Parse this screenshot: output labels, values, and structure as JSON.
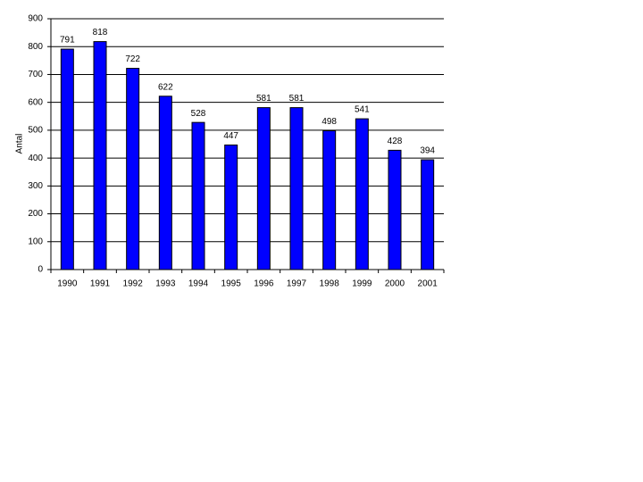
{
  "chart_data": {
    "type": "bar",
    "y_label": "Antal",
    "categories": [
      "1990",
      "1991",
      "1992",
      "1993",
      "1994",
      "1995",
      "1996",
      "1997",
      "1998",
      "1999",
      "2000",
      "2001"
    ],
    "values": [
      791,
      818,
      722,
      622,
      528,
      447,
      581,
      581,
      498,
      541,
      428,
      394
    ],
    "color": "#0000ff",
    "ylim": [
      0,
      900
    ],
    "yticks": [
      0,
      100,
      200,
      300,
      400,
      500,
      600,
      700,
      800,
      900
    ],
    "grid": true
  }
}
